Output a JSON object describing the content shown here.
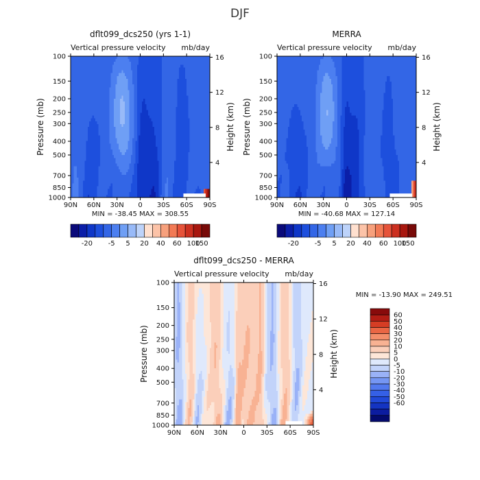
{
  "title": "DJF",
  "colors": {
    "field_scale": [
      "#0a0a7a",
      "#0b1ea8",
      "#0f37c8",
      "#1d4fdd",
      "#3366e6",
      "#4c7ff0",
      "#6f9ff5",
      "#98baf8",
      "#bdd3fa",
      "#ffe0cf",
      "#fcc3a8",
      "#f7a07c",
      "#f27a55",
      "#e6533a",
      "#cc3020",
      "#a8170f",
      "#780a08"
    ],
    "diff_scale": [
      "#040a6e",
      "#0c1ca0",
      "#1434c2",
      "#2149d8",
      "#3560e6",
      "#5279ee",
      "#7596f3",
      "#9ab2f7",
      "#c2d3fa",
      "#dfe9fc",
      "#fde6d8",
      "#fbcfba",
      "#f8b293",
      "#f48e6a",
      "#ea6644",
      "#d53d24",
      "#b21d14",
      "#880b0b"
    ]
  },
  "chart_data": [
    {
      "type": "heatmap",
      "panel": "model",
      "title": "dflt099_dcs250 (yrs 1-1)",
      "subtitle_left": "Vertical pressure velocity",
      "subtitle_right": "mb/day",
      "ylabel": "Pressure (mb)",
      "ylabel_right": "Height (km)",
      "x_ticks": [
        "90N",
        "60N",
        "30N",
        "0",
        "30S",
        "60S",
        "90S"
      ],
      "y_ticks": [
        "100",
        "150",
        "200",
        "250",
        "300",
        "400",
        "500",
        "700",
        "850",
        "1000"
      ],
      "y_tick_values": [
        100,
        150,
        200,
        250,
        300,
        400,
        500,
        700,
        850,
        1000
      ],
      "y_right_ticks": [
        "16",
        "12",
        "8",
        "4"
      ],
      "y_right_tick_values": [
        16,
        12,
        8,
        4
      ],
      "xlim": [
        90,
        -90
      ],
      "ylim": [
        1000,
        100
      ],
      "y_scale": "log",
      "stats": "MIN = -38.45   MAX = 308.55",
      "colorbar_labels": [
        "-20",
        "-5",
        "5",
        "20",
        "40",
        "60",
        "100",
        "150"
      ],
      "colorbar_orientation": "horizontal",
      "colorbar_levels": [
        -30,
        -25,
        -20,
        -15,
        -10,
        -5,
        0,
        5,
        10,
        20,
        30,
        40,
        50,
        60,
        80,
        100,
        150
      ]
    },
    {
      "type": "heatmap",
      "panel": "obs",
      "title": "MERRA",
      "subtitle_left": "Vertical pressure velocity",
      "subtitle_right": "mb/day",
      "ylabel": "Pressure (mb)",
      "ylabel_right": "Height (km)",
      "x_ticks": [
        "90N",
        "60N",
        "30N",
        "0",
        "30S",
        "60S",
        "90S"
      ],
      "y_ticks": [
        "100",
        "150",
        "200",
        "250",
        "300",
        "400",
        "500",
        "700",
        "850",
        "1000"
      ],
      "y_tick_values": [
        100,
        150,
        200,
        250,
        300,
        400,
        500,
        700,
        850,
        1000
      ],
      "y_right_ticks": [
        "16",
        "12",
        "8",
        "4"
      ],
      "y_right_tick_values": [
        16,
        12,
        8,
        4
      ],
      "xlim": [
        90,
        -90
      ],
      "ylim": [
        1000,
        100
      ],
      "y_scale": "log",
      "stats": "MIN = -40.68   MAX = 127.14",
      "colorbar_labels": [
        "-20",
        "-5",
        "5",
        "20",
        "40",
        "60",
        "100",
        "150"
      ],
      "colorbar_orientation": "horizontal",
      "colorbar_levels": [
        -30,
        -25,
        -20,
        -15,
        -10,
        -5,
        0,
        5,
        10,
        20,
        30,
        40,
        50,
        60,
        80,
        100,
        150
      ]
    },
    {
      "type": "heatmap",
      "panel": "diff",
      "title": "dflt099_dcs250 - MERRA",
      "subtitle_left": "Vertical pressure velocity",
      "subtitle_right": "mb/day",
      "ylabel": "Pressure (mb)",
      "ylabel_right": "Height (km)",
      "x_ticks": [
        "90N",
        "60N",
        "30N",
        "0",
        "30S",
        "60S",
        "90S"
      ],
      "y_ticks": [
        "100",
        "150",
        "200",
        "250",
        "300",
        "400",
        "500",
        "700",
        "850",
        "1000"
      ],
      "y_tick_values": [
        100,
        150,
        200,
        250,
        300,
        400,
        500,
        700,
        850,
        1000
      ],
      "y_right_ticks": [
        "16",
        "12",
        "8",
        "4"
      ],
      "y_right_tick_values": [
        16,
        12,
        8,
        4
      ],
      "xlim": [
        90,
        -90
      ],
      "ylim": [
        1000,
        100
      ],
      "y_scale": "log",
      "stats": "MIN = -13.90   MAX = 249.51",
      "colorbar_labels": [
        "60",
        "50",
        "40",
        "30",
        "20",
        "10",
        "5",
        "0",
        "-5",
        "-10",
        "-20",
        "-30",
        "-40",
        "-50",
        "-60"
      ],
      "colorbar_orientation": "vertical"
    }
  ]
}
